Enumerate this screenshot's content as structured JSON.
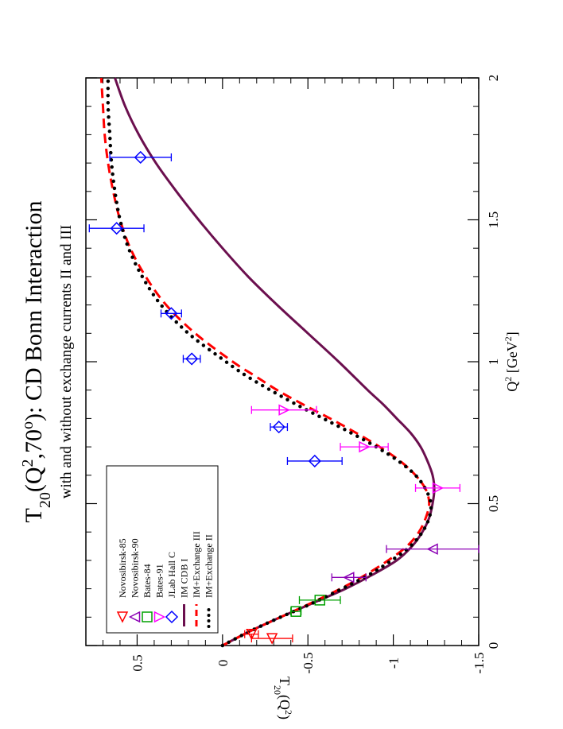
{
  "chart_data": {
    "type": "scatter",
    "orientation": "rotated-90-clockwise",
    "title": "T20(Q2,70o): CD Bonn Interaction",
    "title_parts": {
      "main": "T",
      "sub": "20",
      "open": "(Q",
      "sup1": "2",
      "mid": ",70",
      "sup2": "o",
      "close": "): CD Bonn Interaction"
    },
    "subtitle": "with and without exchange currents II and III",
    "xlabel": "Q2 [GeV2]",
    "xlabel_parts": {
      "main": "Q",
      "sup1": "2",
      "unit": " [GeV",
      "sup2": "2",
      "close": "]"
    },
    "ylabel": "T20(Q2)",
    "ylabel_parts": {
      "main": "T",
      "sub": "20",
      "open": "(Q",
      "sup": "2",
      "close": ")"
    },
    "xlim": [
      0,
      2
    ],
    "ylim": [
      -1.5,
      0.8
    ],
    "x_ticks": [
      0,
      0.5,
      1,
      1.5,
      2
    ],
    "x_tick_labels": [
      "0",
      "0.5",
      "1",
      "1.5",
      "2"
    ],
    "y_ticks": [
      -1.5,
      -1,
      -0.5,
      0,
      0.5
    ],
    "y_tick_labels": [
      "-1.5",
      "-1",
      "-0.5",
      "0",
      "0.5"
    ],
    "legend": {
      "placement": "bottom-left",
      "entries": [
        {
          "label": "Novosibirsk-85",
          "marker": "triangle-left",
          "color": "#ff0000"
        },
        {
          "label": "Novosibirsk-90",
          "marker": "triangle-down",
          "color": "#8b00b5"
        },
        {
          "label": "Bates-84",
          "marker": "square",
          "color": "#00a000"
        },
        {
          "label": "Bates-91",
          "marker": "triangle-right",
          "color": "#ff00ff"
        },
        {
          "label": "JLab Hall C",
          "marker": "diamond",
          "color": "#0000ff"
        },
        {
          "label": "IM CDB I",
          "line": "solid",
          "color": "#6b0f4e"
        },
        {
          "label": "IM+Exchange III",
          "line": "dashed",
          "color": "#ff0000"
        },
        {
          "label": "IM+Exchange II",
          "line": "dotted",
          "color": "#000000"
        }
      ]
    },
    "points": [
      {
        "series": "Novosibirsk-85",
        "marker": "triangle-left",
        "color": "#ff0000",
        "data": [
          {
            "x": 0.04,
            "y": -0.17,
            "err": 0.04
          },
          {
            "x": 0.025,
            "y": -0.29,
            "err": 0.12
          }
        ]
      },
      {
        "series": "Novosibirsk-90",
        "marker": "triangle-down",
        "color": "#8b00b5",
        "data": [
          {
            "x": 0.24,
            "y": -0.74,
            "err": 0.1
          },
          {
            "x": 0.34,
            "y": -1.23,
            "err": 0.27
          }
        ]
      },
      {
        "series": "Bates-84",
        "marker": "square",
        "color": "#00a000",
        "data": [
          {
            "x": 0.12,
            "y": -0.43,
            "err": 0.03
          },
          {
            "x": 0.16,
            "y": -0.57,
            "err": 0.12
          }
        ]
      },
      {
        "series": "Bates-91",
        "marker": "triangle-right",
        "color": "#ff00ff",
        "data": [
          {
            "x": 0.555,
            "y": -1.26,
            "err": 0.13
          },
          {
            "x": 0.7,
            "y": -0.83,
            "err": 0.14
          },
          {
            "x": 0.83,
            "y": -0.36,
            "err": 0.19
          }
        ]
      },
      {
        "series": "JLab Hall C",
        "marker": "diamond",
        "color": "#0000ff",
        "data": [
          {
            "x": 0.65,
            "y": -0.54,
            "err": 0.16
          },
          {
            "x": 0.77,
            "y": -0.33,
            "err": 0.05
          },
          {
            "x": 1.01,
            "y": 0.18,
            "err": 0.05
          },
          {
            "x": 1.17,
            "y": 0.3,
            "err": 0.06
          },
          {
            "x": 1.47,
            "y": 0.62,
            "err": 0.16
          },
          {
            "x": 1.72,
            "y": 0.48,
            "err": 0.18
          }
        ]
      }
    ],
    "series": [
      {
        "name": "IM CDB I",
        "style": "solid",
        "color": "#6b0f4e",
        "x": [
          0,
          0.05,
          0.1,
          0.15,
          0.2,
          0.25,
          0.3,
          0.35,
          0.4,
          0.45,
          0.5,
          0.55,
          0.6,
          0.65,
          0.7,
          0.75,
          0.8,
          0.85,
          0.9,
          1.0,
          1.1,
          1.2,
          1.3,
          1.4,
          1.5,
          1.6,
          1.7,
          1.8,
          1.9,
          2.0
        ],
        "values": [
          0,
          -0.16,
          -0.34,
          -0.53,
          -0.72,
          -0.88,
          -1.02,
          -1.11,
          -1.17,
          -1.21,
          -1.23,
          -1.24,
          -1.23,
          -1.2,
          -1.16,
          -1.1,
          -1.02,
          -0.94,
          -0.85,
          -0.68,
          -0.5,
          -0.32,
          -0.15,
          0.0,
          0.14,
          0.27,
          0.39,
          0.49,
          0.57,
          0.63
        ]
      },
      {
        "name": "IM+Exchange III",
        "style": "dashed",
        "color": "#ff0000",
        "x": [
          0,
          0.05,
          0.1,
          0.15,
          0.2,
          0.25,
          0.3,
          0.35,
          0.4,
          0.45,
          0.5,
          0.55,
          0.6,
          0.65,
          0.7,
          0.75,
          0.8,
          0.85,
          0.9,
          0.95,
          1.0,
          1.1,
          1.2,
          1.3,
          1.4,
          1.5,
          1.6,
          1.7,
          1.8,
          1.9,
          2.0
        ],
        "values": [
          0,
          -0.16,
          -0.34,
          -0.52,
          -0.69,
          -0.84,
          -0.97,
          -1.08,
          -1.15,
          -1.19,
          -1.21,
          -1.19,
          -1.13,
          -1.04,
          -0.92,
          -0.78,
          -0.63,
          -0.47,
          -0.32,
          -0.19,
          -0.06,
          0.16,
          0.33,
          0.45,
          0.54,
          0.6,
          0.64,
          0.67,
          0.69,
          0.7,
          0.71
        ]
      },
      {
        "name": "IM+Exchange II",
        "style": "dotted",
        "color": "#000000",
        "x": [
          0,
          0.05,
          0.1,
          0.15,
          0.2,
          0.25,
          0.3,
          0.35,
          0.4,
          0.45,
          0.5,
          0.55,
          0.6,
          0.65,
          0.7,
          0.75,
          0.8,
          0.85,
          0.9,
          0.95,
          1.0,
          1.1,
          1.2,
          1.3,
          1.4,
          1.5,
          1.6,
          1.7,
          1.8,
          1.9,
          2.0
        ],
        "values": [
          0,
          -0.16,
          -0.34,
          -0.53,
          -0.7,
          -0.86,
          -0.99,
          -1.1,
          -1.17,
          -1.21,
          -1.22,
          -1.19,
          -1.13,
          -1.03,
          -0.9,
          -0.75,
          -0.59,
          -0.43,
          -0.28,
          -0.14,
          -0.02,
          0.2,
          0.36,
          0.47,
          0.55,
          0.6,
          0.63,
          0.65,
          0.66,
          0.67,
          0.67
        ]
      }
    ]
  }
}
